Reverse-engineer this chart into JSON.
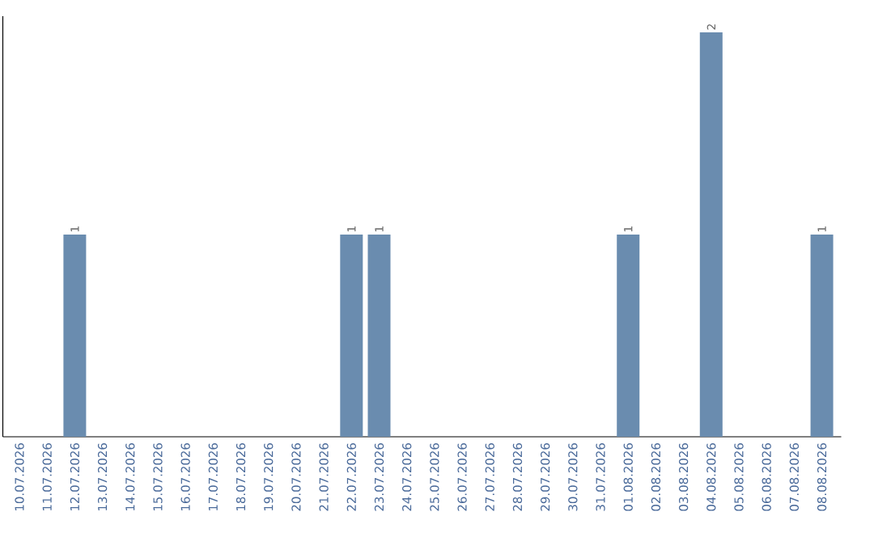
{
  "chart_data": {
    "type": "bar",
    "categories": [
      "10.07.2026",
      "11.07.2026",
      "12.07.2026",
      "13.07.2026",
      "14.07.2026",
      "15.07.2026",
      "16.07.2026",
      "17.07.2026",
      "18.07.2026",
      "19.07.2026",
      "20.07.2026",
      "21.07.2026",
      "22.07.2026",
      "23.07.2026",
      "24.07.2026",
      "25.07.2026",
      "26.07.2026",
      "27.07.2026",
      "28.07.2026",
      "29.07.2026",
      "30.07.2026",
      "31.07.2026",
      "01.08.2026",
      "02.08.2026",
      "03.08.2026",
      "04.08.2026",
      "05.08.2026",
      "06.08.2026",
      "07.08.2026",
      "08.08.2026"
    ],
    "values": [
      0,
      0,
      1,
      0,
      0,
      0,
      0,
      0,
      0,
      0,
      0,
      0,
      1,
      1,
      0,
      0,
      0,
      0,
      0,
      0,
      0,
      0,
      1,
      0,
      0,
      2,
      0,
      0,
      0,
      1
    ],
    "value_labels": [
      null,
      null,
      "1",
      null,
      null,
      null,
      null,
      null,
      null,
      null,
      null,
      null,
      "1",
      "1",
      null,
      null,
      null,
      null,
      null,
      null,
      null,
      null,
      "1",
      null,
      null,
      "2",
      null,
      null,
      null,
      "1"
    ],
    "color": "#6a8caf",
    "ylim": [
      0,
      2.08
    ],
    "tick_labels": "x"
  }
}
